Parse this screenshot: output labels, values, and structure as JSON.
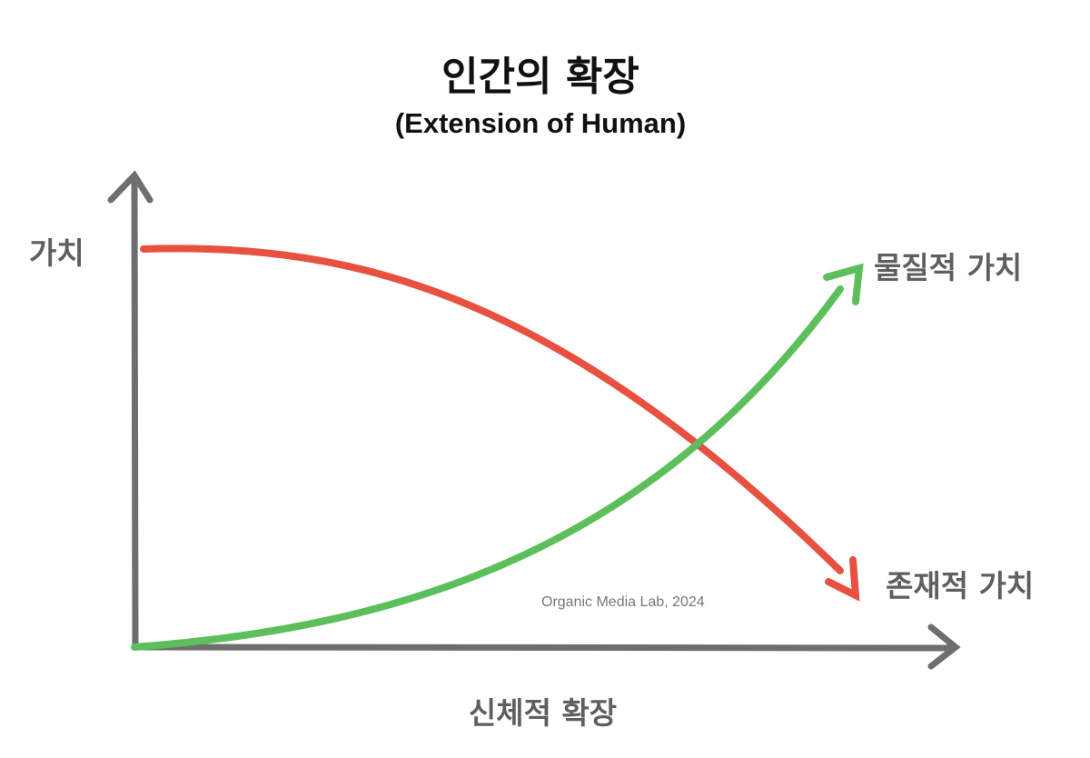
{
  "title": "인간의 확장",
  "subtitle": "(Extension of Human)",
  "axes": {
    "y_label": "가치",
    "x_label": "신체적 확장"
  },
  "series": [
    {
      "name": "물질적 가치",
      "color": "#5cbf5c",
      "trend": "increasing"
    },
    {
      "name": "존재적 가치",
      "color": "#e85040",
      "trend": "decreasing"
    }
  ],
  "watermark": "Organic Media Lab, 2024",
  "axis_color": "#6e6e6e"
}
